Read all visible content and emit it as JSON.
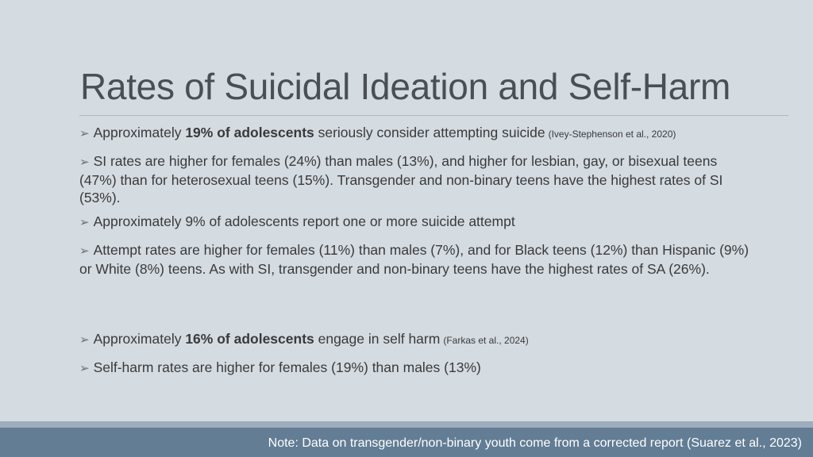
{
  "title": "Rates of Suicidal Ideation and Self-Harm",
  "bullet_marker": "➢",
  "bullets": [
    {
      "pre": "Approximately ",
      "bold": "19% of adolescents",
      "post": " seriously consider attempting suicide",
      "cite": "(Ivey-Stephenson et al., 2020)"
    },
    {
      "text": "SI rates are higher for females (24%) than males (13%), and higher for lesbian, gay, or bisexual teens (47%) than for heterosexual teens (15%). Transgender and non-binary teens have the highest rates of SI (53%)."
    },
    {
      "text": "Approximately 9% of adolescents report one or more suicide attempt"
    },
    {
      "text": "Attempt rates are higher for females (11%) than males (7%), and for Black teens (12%) than Hispanic (9%) or White (8%) teens. As with SI, transgender and non-binary teens have the highest rates of SA (26%)."
    },
    {
      "pre": "Approximately ",
      "bold": "16% of adolescents",
      "post": " engage in self harm",
      "cite": "(Farkas et al., 2024)"
    },
    {
      "text": "Self-harm rates are higher for females (19%) than males (13%)"
    }
  ],
  "footer_note": "Note: Data on transgender/non-binary youth come from a corrected report (Suarez et al., 2023)"
}
